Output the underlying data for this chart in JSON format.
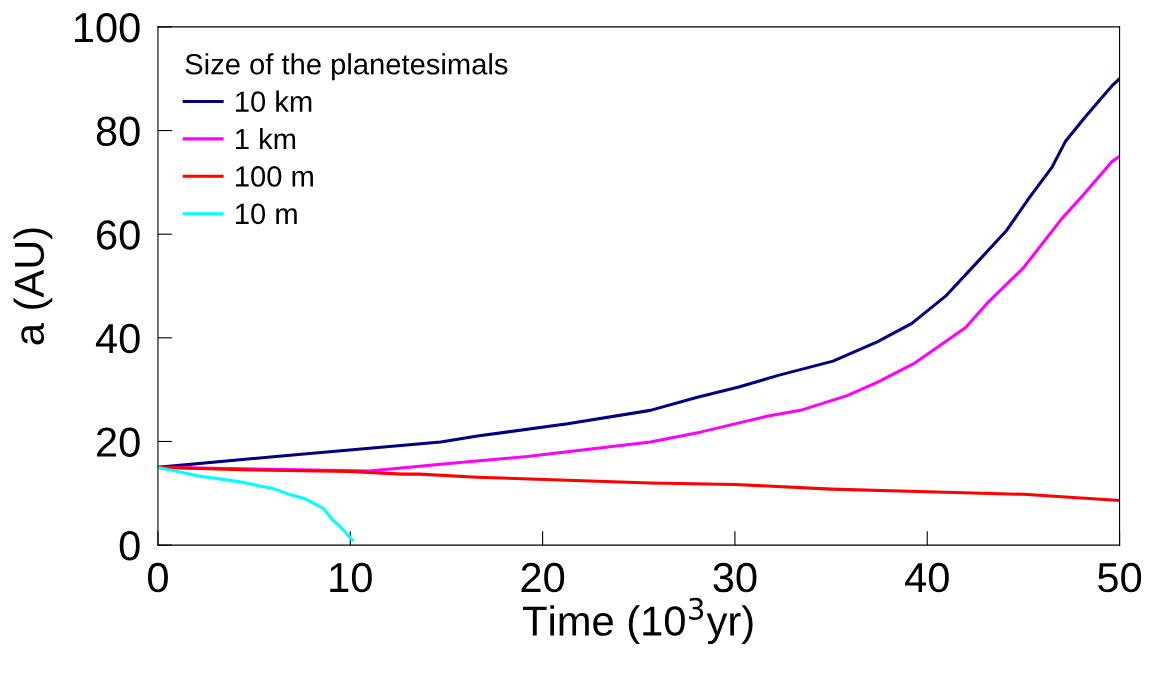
{
  "chart_data": {
    "type": "line",
    "xlabel": "Time (10$^{3}$yr)",
    "ylabel": "a (AU)",
    "legend_title": "Size of the planetesimals",
    "xlim": [
      0,
      50
    ],
    "ylim": [
      0,
      100
    ],
    "xticks": [
      0,
      10,
      20,
      30,
      40,
      50
    ],
    "yticks": [
      0,
      20,
      40,
      60,
      80,
      100
    ],
    "grid": false,
    "legend": "top left",
    "marker": "none",
    "line_style": "solid",
    "series": [
      {
        "name": "10 km",
        "color": "#000080",
        "x": [
          0,
          7.6,
          14.7,
          16.7,
          21.3,
          25.6,
          28,
          30.2,
          32.3,
          35.1,
          37.4,
          39.2,
          41,
          42.7,
          44.1,
          45.3,
          46.5,
          47.2,
          48.3,
          49.6,
          50
        ],
        "values": [
          15,
          17.6,
          19.9,
          21.1,
          23.4,
          26,
          28.5,
          30.5,
          32.8,
          35.5,
          39.2,
          42.8,
          48.2,
          55,
          60.6,
          67,
          73,
          78,
          83,
          88.6,
          90
        ]
      },
      {
        "name": "1 km",
        "color": "#ff00ff",
        "x": [
          0,
          11,
          14.7,
          19.2,
          25.6,
          28.2,
          31.6,
          33.4,
          35.8,
          37.4,
          39.3,
          42,
          43.2,
          45,
          47,
          48.1,
          49.6,
          50
        ],
        "values": [
          15,
          14.3,
          15.6,
          17.1,
          19.9,
          21.8,
          24.8,
          26,
          28.8,
          31.4,
          35,
          42,
          47,
          53.5,
          63,
          67.5,
          74,
          75
        ]
      },
      {
        "name": "100 m",
        "color": "#ff0000",
        "x": [
          0,
          4.8,
          10,
          12.7,
          13.6,
          16.6,
          21.3,
          25.6,
          30,
          35,
          40,
          45,
          50
        ],
        "values": [
          15,
          14.5,
          14.2,
          13.7,
          13.7,
          13.1,
          12.5,
          12.0,
          11.7,
          10.8,
          10.3,
          9.8,
          8.6
        ]
      },
      {
        "name": "10 m",
        "color": "#00ffff",
        "x": [
          0,
          2.2,
          4.3,
          5.3,
          6.0,
          6.9,
          7.6,
          8.6,
          9.1,
          9.5,
          10.1
        ],
        "values": [
          15,
          13.3,
          12.2,
          11.4,
          10.9,
          9.7,
          9.0,
          7.1,
          4.8,
          3.5,
          1.0
        ]
      }
    ]
  }
}
